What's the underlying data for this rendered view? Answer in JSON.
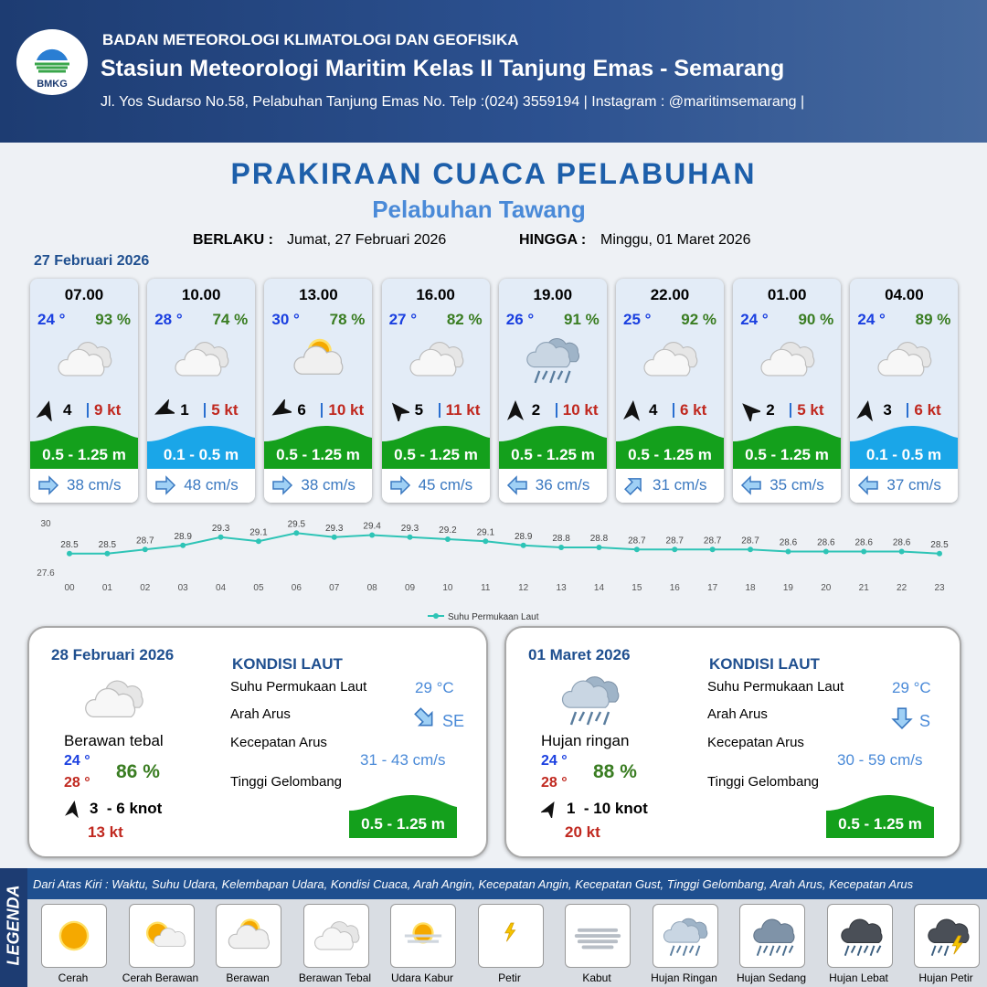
{
  "header": {
    "logo_text": "BMKG",
    "org": "BADAN METEOROLOGI KLIMATOLOGI DAN GEOFISIKA",
    "station": "Stasiun Meteorologi Maritim Kelas II Tanjung Emas - Semarang",
    "address": "Jl. Yos Sudarso No.58, Pelabuhan Tanjung Emas No. Telp :(024) 3559194 | Instagram : @maritimsemarang |"
  },
  "title": "PRAKIRAAN CUACA PELABUHAN",
  "subtitle": "Pelabuhan Tawang",
  "validity": {
    "from_label": "BERLAKU :",
    "from": "Jumat, 27 Februari 2026",
    "until_label": "HINGGA :",
    "until": "Minggu, 01 Maret 2026"
  },
  "day_label": "27 Februari 2026",
  "cards": [
    {
      "time": "07.00",
      "temp": "24 °",
      "humidity": "93 %",
      "weather": "Berawan Tebal",
      "wind_dir": 15,
      "wind_speed": "4",
      "gust": "9 kt",
      "wave": "0.5 - 1.25 m",
      "wave_color": "#14a01c",
      "current_dir": 90,
      "current": "38 cm/s"
    },
    {
      "time": "10.00",
      "temp": "28 °",
      "humidity": "74 %",
      "weather": "Berawan Tebal",
      "wind_dir": 245,
      "wind_speed": "1",
      "gust": "5 kt",
      "wave": "0.1 - 0.5 m",
      "wave_color": "#1aa6e8",
      "current_dir": 90,
      "current": "48 cm/s"
    },
    {
      "time": "13.00",
      "temp": "30 °",
      "humidity": "78 %",
      "weather": "Berawan",
      "wind_dir": 240,
      "wind_speed": "6",
      "gust": "10 kt",
      "wave": "0.5 - 1.25 m",
      "wave_color": "#14a01c",
      "current_dir": 90,
      "current": "38 cm/s"
    },
    {
      "time": "16.00",
      "temp": "27 °",
      "humidity": "82 %",
      "weather": "Berawan Tebal",
      "wind_dir": 320,
      "wind_speed": "5",
      "gust": "11 kt",
      "wave": "0.5 - 1.25 m",
      "wave_color": "#14a01c",
      "current_dir": 90,
      "current": "45 cm/s"
    },
    {
      "time": "19.00",
      "temp": "26 °",
      "humidity": "91 %",
      "weather": "Hujan Ringan",
      "wind_dir": 0,
      "wind_speed": "2",
      "gust": "10 kt",
      "wave": "0.5 - 1.25 m",
      "wave_color": "#14a01c",
      "current_dir": 270,
      "current": "36 cm/s"
    },
    {
      "time": "22.00",
      "temp": "25 °",
      "humidity": "92 %",
      "weather": "Berawan Tebal",
      "wind_dir": 5,
      "wind_speed": "4",
      "gust": "6 kt",
      "wave": "0.5 - 1.25 m",
      "wave_color": "#14a01c",
      "current_dir": 45,
      "current": "31 cm/s"
    },
    {
      "time": "01.00",
      "temp": "24 °",
      "humidity": "90 %",
      "weather": "Berawan Tebal",
      "wind_dir": 315,
      "wind_speed": "2",
      "gust": "5 kt",
      "wave": "0.5 - 1.25 m",
      "wave_color": "#14a01c",
      "current_dir": 270,
      "current": "35 cm/s"
    },
    {
      "time": "04.00",
      "temp": "24 °",
      "humidity": "89 %",
      "weather": "Berawan Tebal",
      "wind_dir": 10,
      "wind_speed": "3",
      "gust": "6 kt",
      "wave": "0.1 - 0.5 m",
      "wave_color": "#1aa6e8",
      "current_dir": 270,
      "current": "37 cm/s"
    }
  ],
  "chart_data": {
    "type": "line",
    "categories": [
      "00",
      "01",
      "02",
      "03",
      "04",
      "05",
      "06",
      "07",
      "08",
      "09",
      "10",
      "11",
      "12",
      "13",
      "14",
      "15",
      "16",
      "17",
      "18",
      "19",
      "20",
      "21",
      "22",
      "23"
    ],
    "series": [
      {
        "name": "Suhu Permukaan Laut",
        "color": "#2ec4b6",
        "values": [
          28.5,
          28.5,
          28.7,
          28.9,
          29.3,
          29.1,
          29.5,
          29.3,
          29.4,
          29.3,
          29.2,
          29.1,
          28.9,
          28.8,
          28.8,
          28.7,
          28.7,
          28.7,
          28.7,
          28.6,
          28.6,
          28.6,
          28.6,
          28.5
        ]
      }
    ],
    "ylim": [
      27.6,
      30
    ],
    "yticks": [
      27.6,
      30
    ]
  },
  "panels": [
    {
      "date": "28 Februari 2026",
      "weather": "Berawan tebal",
      "icon": "Berawan Tebal",
      "temp_min": "24 °",
      "temp_max": "28 °",
      "humidity": "86 %",
      "wind_dir": 10,
      "wind": "3  - 6 knot",
      "gust": "13 kt",
      "heading": "KONDISI LAUT",
      "sst_label": "Suhu Permukaan Laut",
      "sst": "29 °C",
      "dir_label": "Arah Arus",
      "current_dir": 135,
      "current_dir_text": "SE",
      "speed_label": "Kecepatan Arus",
      "current_speed": "31 - 43 cm/s",
      "wave_label": "Tinggi Gelombang",
      "wave": "0.5 - 1.25 m",
      "wave_color": "#14a01c"
    },
    {
      "date": "01 Maret 2026",
      "weather": "Hujan ringan",
      "icon": "Hujan Ringan",
      "temp_min": "24 °",
      "temp_max": "28 °",
      "humidity": "88 %",
      "wind_dir": 30,
      "wind": "1  - 10 knot",
      "gust": "20 kt",
      "heading": "KONDISI LAUT",
      "sst_label": "Suhu Permukaan Laut",
      "sst": "29 °C",
      "dir_label": "Arah Arus",
      "current_dir": 180,
      "current_dir_text": "S",
      "speed_label": "Kecepatan Arus",
      "current_speed": "30 - 59 cm/s",
      "wave_label": "Tinggi Gelombang",
      "wave": "0.5 - 1.25 m",
      "wave_color": "#14a01c"
    }
  ],
  "legend": {
    "title": "LEGENDA",
    "note": "Dari Atas Kiri : Waktu, Suhu Udara, Kelembapan Udara, Kondisi Cuaca, Arah Angin, Kecepatan Angin, Kecepatan Gust, Tinggi Gelombang, Arah Arus, Kecepatan Arus",
    "items": [
      "Cerah",
      "Cerah Berawan",
      "Berawan",
      "Berawan Tebal",
      "Udara Kabur",
      "Petir",
      "Kabut",
      "Hujan Ringan",
      "Hujan Sedang",
      "Hujan Lebat",
      "Hujan Petir"
    ]
  }
}
